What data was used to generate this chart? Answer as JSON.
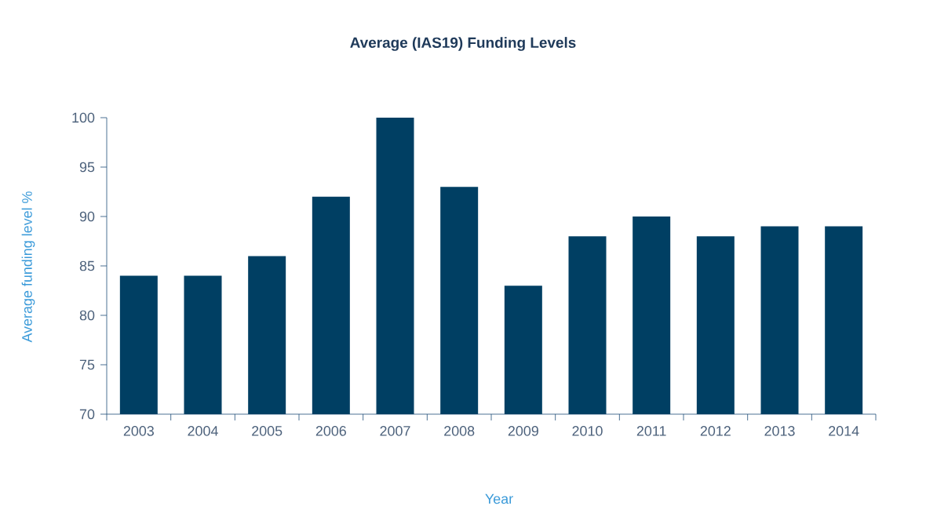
{
  "chart_data": {
    "type": "bar",
    "title": "Average (IAS19) Funding Levels",
    "xlabel": "Year",
    "ylabel": "Average funding level %",
    "categories": [
      "2003",
      "2004",
      "2005",
      "2006",
      "2007",
      "2008",
      "2009",
      "2010",
      "2011",
      "2012",
      "2013",
      "2014"
    ],
    "values": [
      84,
      84,
      86,
      92,
      100,
      93,
      83,
      88,
      90,
      88,
      89,
      89
    ],
    "color": "#003f63",
    "ylim": [
      70,
      100
    ],
    "yticks": [
      70,
      75,
      80,
      85,
      90,
      95,
      100
    ],
    "grid": false
  }
}
